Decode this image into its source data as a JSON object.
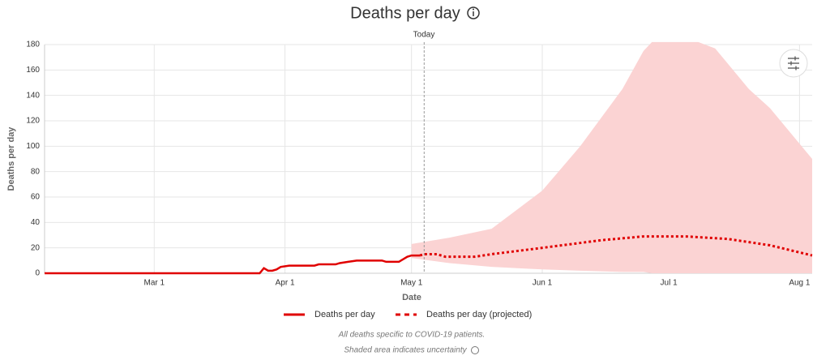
{
  "chart_data": {
    "type": "line",
    "title": "Deaths per day",
    "x_label": "Date",
    "y_label": "Deaths per day",
    "xlim": [
      "Feb 4",
      "Aug 4"
    ],
    "xticks": [
      "Mar 1",
      "Apr 1",
      "May 1",
      "Jun 1",
      "Jul 1",
      "Aug 1"
    ],
    "ylim": [
      0,
      180
    ],
    "yticks": [
      0,
      20,
      40,
      60,
      80,
      100,
      120,
      140,
      160,
      180
    ],
    "grid": true,
    "today": {
      "x": "May 4",
      "label": "Today"
    },
    "series": [
      {
        "name": "Deaths per day",
        "color": "#e00000",
        "dashed": false,
        "x": [
          "Feb 4",
          "Mar 26",
          "Mar 27",
          "Mar 28",
          "Mar 29",
          "Mar 30",
          "Mar 31",
          "Apr 2",
          "Apr 8",
          "Apr 9",
          "Apr 13",
          "Apr 14",
          "Apr 16",
          "Apr 18",
          "Apr 24",
          "Apr 25",
          "Apr 28",
          "Apr 30",
          "May 1",
          "May 3"
        ],
        "values": [
          0,
          0,
          4,
          2,
          2,
          3,
          5,
          6,
          6,
          7,
          7,
          8,
          9,
          10,
          10,
          9,
          9,
          13,
          14,
          14
        ]
      },
      {
        "name": "Deaths per day (projected)",
        "color": "#e00000",
        "dashed": true,
        "x": [
          "May 3",
          "May 4",
          "May 7",
          "May 9",
          "May 16",
          "May 20",
          "Jun 1",
          "Jun 15",
          "Jun 25",
          "Jul 5",
          "Jul 15",
          "Jul 25",
          "Aug 4"
        ],
        "values": [
          14,
          15,
          15,
          13,
          13,
          15,
          20,
          26,
          29,
          29,
          27,
          22,
          14
        ]
      }
    ],
    "band": {
      "color": "#fbd3d3",
      "x": [
        "May 1",
        "May 10",
        "May 20",
        "Jun 1",
        "Jun 10",
        "Jun 20",
        "Jun 25",
        "Jun 27",
        "Jul 8",
        "Jul 12",
        "Jul 20",
        "Jul 25",
        "Aug 4"
      ],
      "upper": [
        23,
        28,
        35,
        65,
        100,
        145,
        175,
        182,
        182,
        177,
        145,
        130,
        90
      ],
      "lower": [
        12,
        8,
        5,
        3,
        2,
        1,
        1,
        0,
        0,
        0,
        0,
        0,
        0
      ]
    },
    "notes": [
      "All deaths specific to COVID-19 patients.",
      "Shaded area indicates uncertainty"
    ]
  }
}
